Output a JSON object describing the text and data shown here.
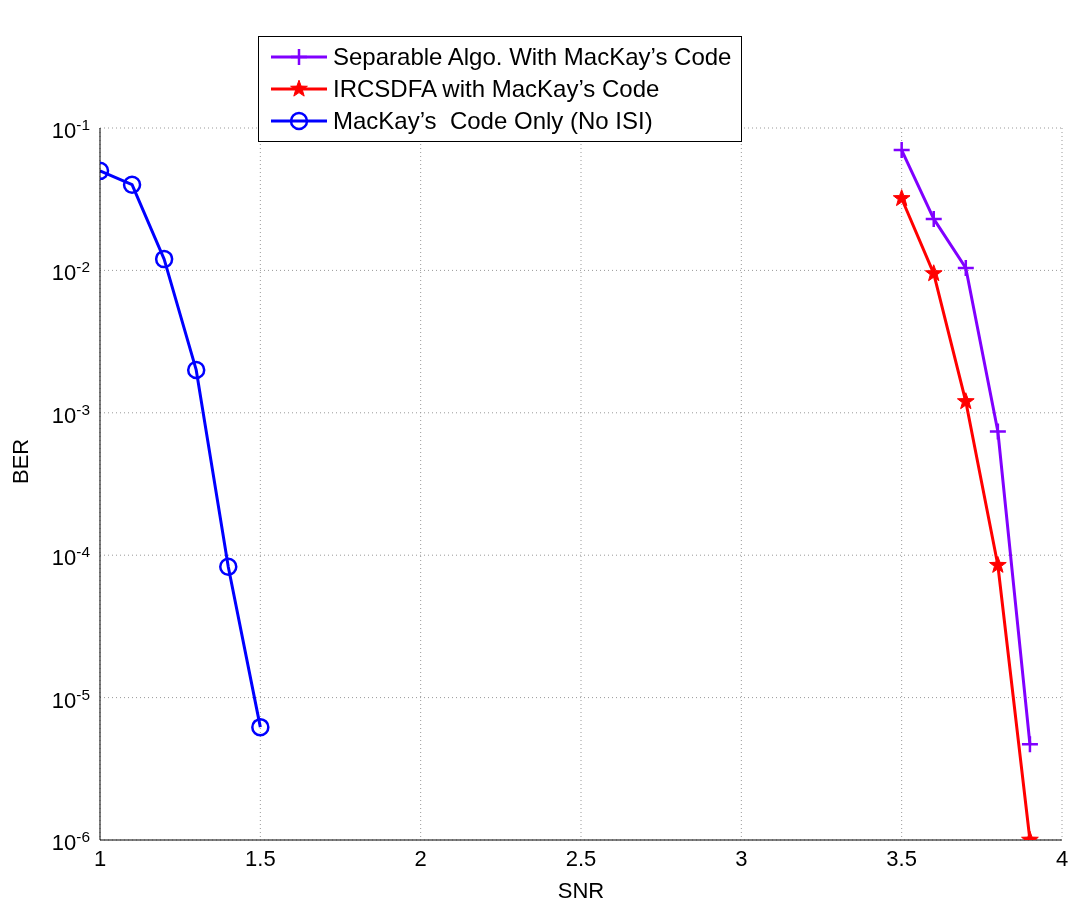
{
  "chart_data": {
    "type": "line",
    "xlabel": "SNR",
    "ylabel": "BER",
    "log": "y",
    "grid": true,
    "legend": "top",
    "line_style": "solid",
    "xlim": [
      1,
      4
    ],
    "xticks": [
      1,
      1.5,
      2,
      2.5,
      3,
      3.5,
      4
    ],
    "ylim": [
      1e-06,
      0.1
    ],
    "yticks": [
      {
        "value": 1e-06,
        "label": "10$^{-6}$"
      },
      {
        "value": 1e-05,
        "label": "10$^{-5}$"
      },
      {
        "value": 0.0001,
        "label": "10$^{-4}$"
      },
      {
        "value": 0.001,
        "label": "10$^{-3}$"
      },
      {
        "value": 0.01,
        "label": "10$^{-2}$"
      },
      {
        "value": 0.1,
        "label": "10$^{-1}$"
      }
    ],
    "series": [
      {
        "name": "Separable Algo. With MacKay’s Code",
        "color": "#8000ff",
        "marker": "cross",
        "x": [
          3.5,
          3.6,
          3.7,
          3.8,
          3.9
        ],
        "values": [
          0.07,
          0.023,
          0.0104,
          0.00074,
          4.7e-06
        ]
      },
      {
        "name": "IRCSDFA with MacKay’s Code",
        "color": "#ff0000",
        "marker": "star",
        "x": [
          3.5,
          3.6,
          3.7,
          3.8,
          3.9
        ],
        "values": [
          0.032,
          0.0095,
          0.0012,
          8.5e-05,
          1e-06
        ]
      },
      {
        "name": "MacKay’s  Code Only (No ISI)",
        "color": "#0000ff",
        "marker": "circle",
        "x": [
          1,
          1.1,
          1.2,
          1.3,
          1.4,
          1.5
        ],
        "values": [
          0.05,
          0.04,
          0.012,
          0.002,
          8.3e-05,
          6.2e-06
        ]
      }
    ]
  }
}
